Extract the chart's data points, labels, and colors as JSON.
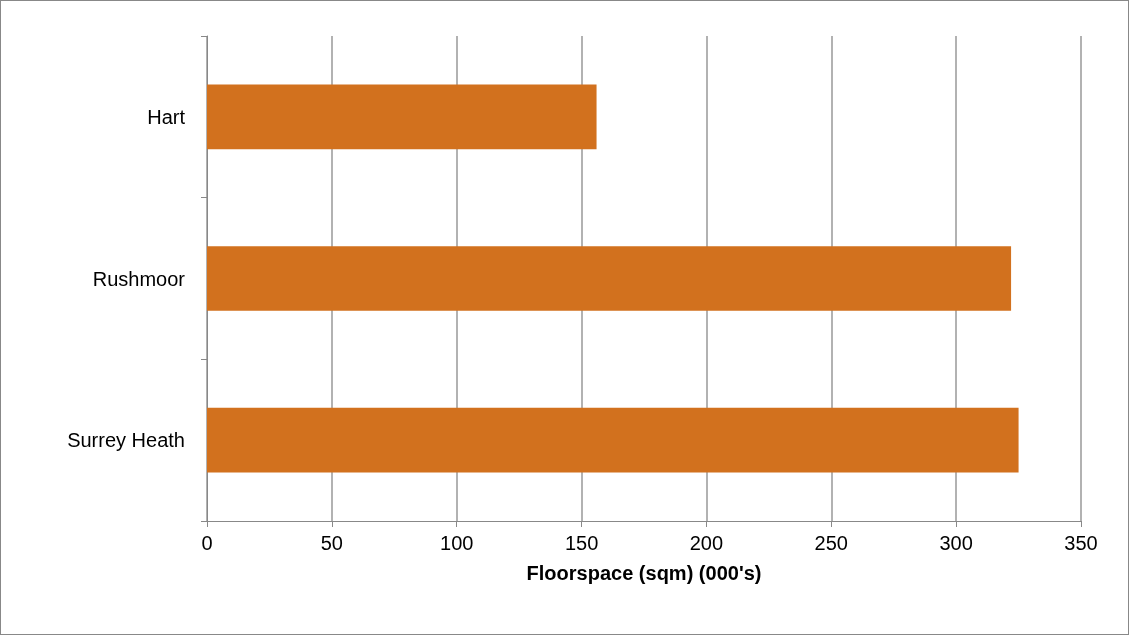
{
  "chart_data": {
    "type": "bar",
    "orientation": "horizontal",
    "xlabel": "Floorspace (sqm) (000's)",
    "categories": [
      "Hart",
      "Rushmoor",
      "Surrey Heath"
    ],
    "values": [
      156,
      322,
      325
    ],
    "color": "#d2711e",
    "xlim": [
      0,
      350
    ],
    "xticks": [
      0,
      50,
      100,
      150,
      200,
      250,
      300,
      350
    ],
    "grid": "x"
  }
}
